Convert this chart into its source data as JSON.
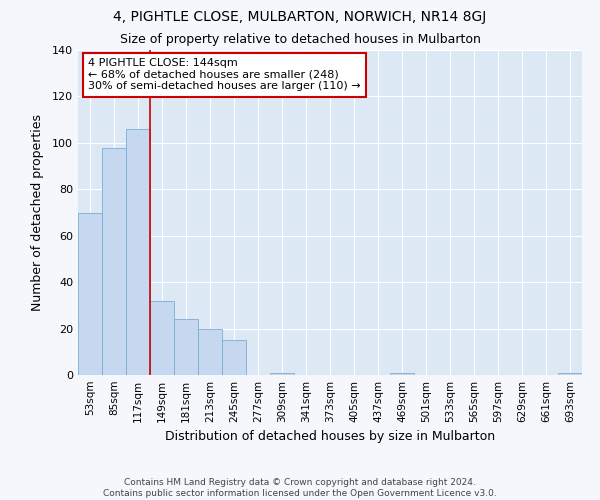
{
  "title": "4, PIGHTLE CLOSE, MULBARTON, NORWICH, NR14 8GJ",
  "subtitle": "Size of property relative to detached houses in Mulbarton",
  "xlabel": "Distribution of detached houses by size in Mulbarton",
  "ylabel": "Number of detached properties",
  "categories": [
    "53sqm",
    "85sqm",
    "117sqm",
    "149sqm",
    "181sqm",
    "213sqm",
    "245sqm",
    "277sqm",
    "309sqm",
    "341sqm",
    "373sqm",
    "405sqm",
    "437sqm",
    "469sqm",
    "501sqm",
    "533sqm",
    "565sqm",
    "597sqm",
    "629sqm",
    "661sqm",
    "693sqm"
  ],
  "values": [
    70,
    98,
    106,
    32,
    24,
    20,
    15,
    0,
    1,
    0,
    0,
    0,
    0,
    1,
    0,
    0,
    0,
    0,
    0,
    0,
    1
  ],
  "bar_color": "#c5d8f0",
  "bar_edge_color": "#7aafd4",
  "vline_x": 2.5,
  "vline_color": "#cc0000",
  "annotation_text": "4 PIGHTLE CLOSE: 144sqm\n← 68% of detached houses are smaller (248)\n30% of semi-detached houses are larger (110) →",
  "annotation_box_color": "#ffffff",
  "annotation_box_edge_color": "#cc0000",
  "ylim": [
    0,
    140
  ],
  "yticks": [
    0,
    20,
    40,
    60,
    80,
    100,
    120,
    140
  ],
  "plot_bg_color": "#dde8f5",
  "fig_bg_color": "#f5f7fc",
  "grid_color": "#ffffff",
  "footer_text": "Contains HM Land Registry data © Crown copyright and database right 2024.\nContains public sector information licensed under the Open Government Licence v3.0."
}
